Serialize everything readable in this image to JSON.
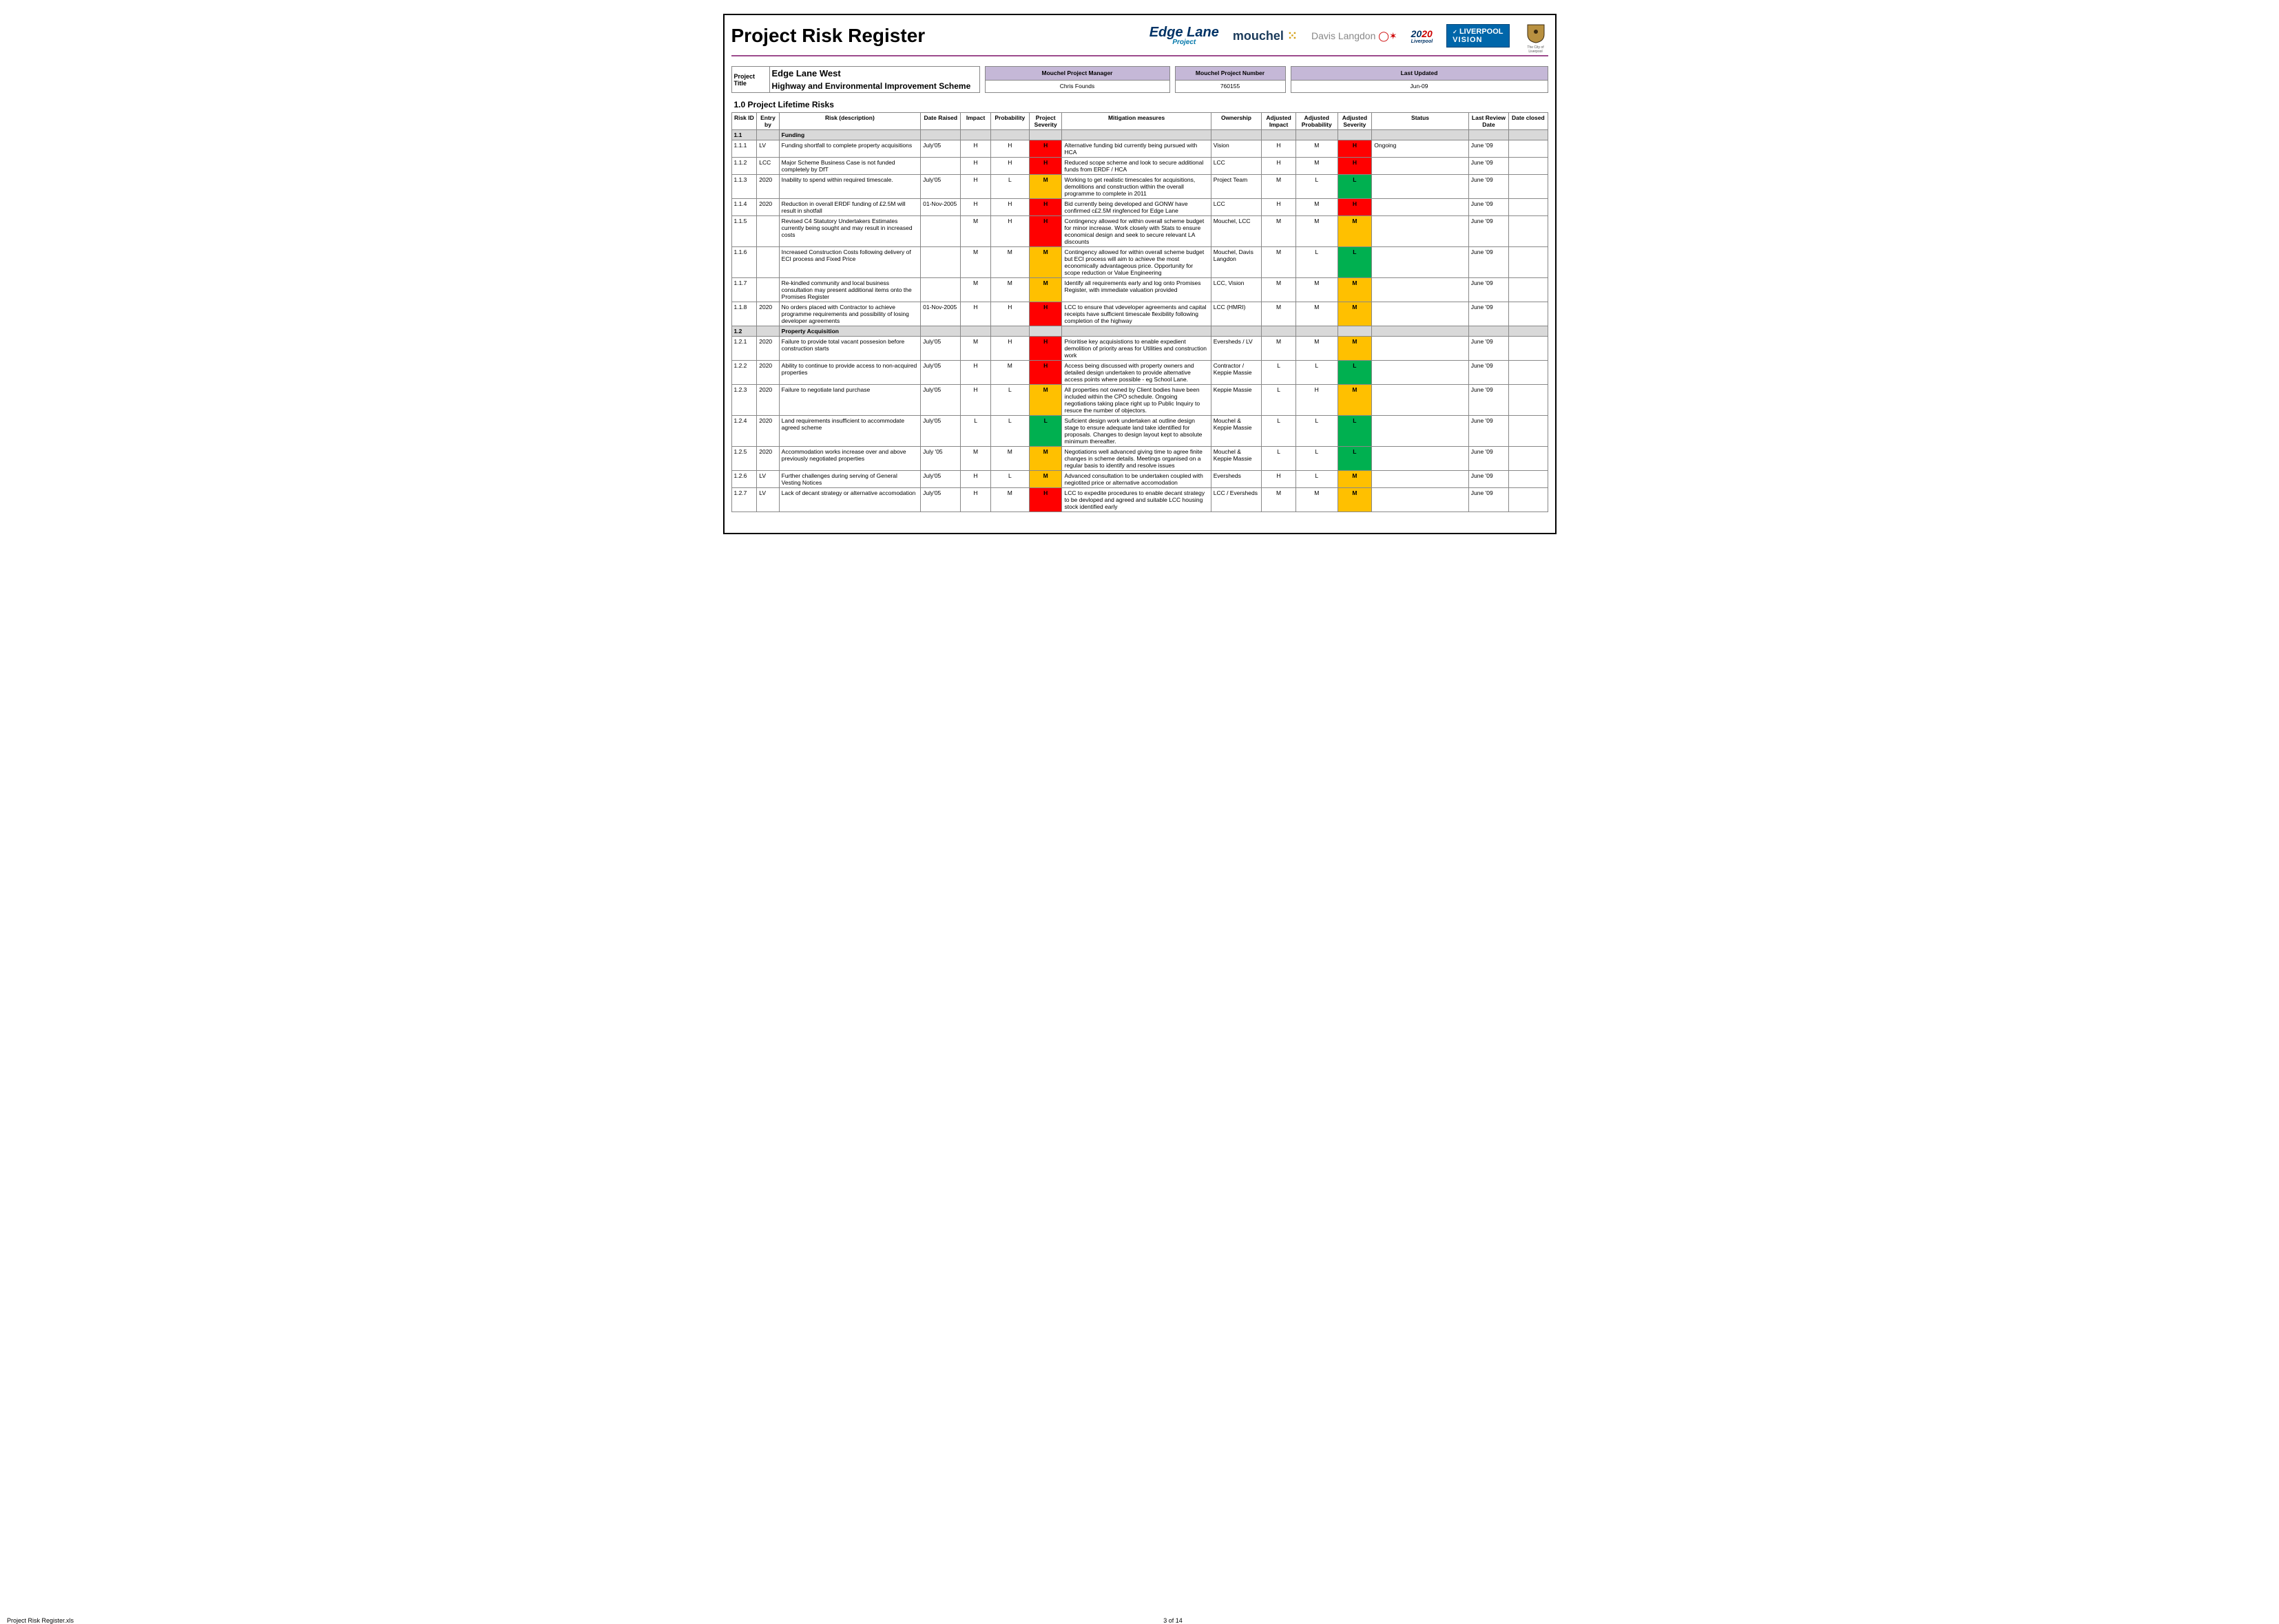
{
  "title": "Project Risk Register",
  "logos": {
    "edge": "Edge Lane",
    "edge_sub": "Project",
    "mouchel": "mouchel",
    "davis": "Davis Langdon",
    "y2020": "20",
    "y2020b": "20",
    "y2020_sub": "Liverpool",
    "vision_top": "LIVERPOOL",
    "vision_bot": "VISION",
    "crest_sub": "The City of Liverpool"
  },
  "meta": {
    "project_title_label": "Project Title",
    "project_title": "Edge Lane West",
    "project_sub": "Highway and Environmental Improvement Scheme",
    "mgr_label": "Mouchel Project Manager",
    "mgr": "Chris Founds",
    "num_label": "Mouchel Project Number",
    "num": "760155",
    "upd_label": "Last Updated",
    "upd": "Jun-09"
  },
  "section": "1.0    Project Lifetime Risks",
  "columns": [
    "Risk ID",
    "Entry by",
    "Risk (description)",
    "Date Raised",
    "Impact",
    "Probability",
    "Project Severity",
    "Mitigation measures",
    "Ownership",
    "Adjusted Impact",
    "Adjusted Probability",
    "Adjusted Severity",
    "Status",
    "Last Review Date",
    "Date closed"
  ],
  "col_widths": [
    "34px",
    "30px",
    "190px",
    "54px",
    "40px",
    "52px",
    "44px",
    "200px",
    "68px",
    "46px",
    "56px",
    "46px",
    "130px",
    "54px",
    "52px"
  ],
  "sev_colors": {
    "H": "#ff0000",
    "M": "#ffc000",
    "L": "#00b050"
  },
  "rows": [
    {
      "type": "group",
      "id": "1.1",
      "desc": "Funding"
    },
    {
      "id": "1.1.1",
      "entry": "LV",
      "desc": "Funding shortfall to complete property acquisitions",
      "date": "July'05",
      "impact": "H",
      "prob": "H",
      "sev": "H",
      "mit": "Alternative funding bid currently being pursued with HCA",
      "own": "Vision",
      "aimp": "H",
      "aprob": "M",
      "asev": "H",
      "status": "Ongoing",
      "review": "June '09",
      "closed": ""
    },
    {
      "id": "1.1.2",
      "entry": "LCC",
      "desc": "Major Scheme Business Case is not funded completely by DfT",
      "date": "",
      "impact": "H",
      "prob": "H",
      "sev": "H",
      "mit": "Reduced scope scheme and look to secure additional funds from ERDF / HCA",
      "own": "LCC",
      "aimp": "H",
      "aprob": "M",
      "asev": "H",
      "status": "",
      "review": "June '09",
      "closed": ""
    },
    {
      "id": "1.1.3",
      "entry": "2020",
      "desc": "Inability to spend within required timescale.",
      "date": "July'05",
      "impact": "H",
      "prob": "L",
      "sev": "M",
      "mit": "Working to get realistic timescales for acquisitions, demolitions and construction within the overall programme to complete in 2011",
      "own": "Project Team",
      "aimp": "M",
      "aprob": "L",
      "asev": "L",
      "status": "",
      "review": "June '09",
      "closed": ""
    },
    {
      "id": "1.1.4",
      "entry": "2020",
      "desc": "Reduction in overall ERDF funding of £2.5M will result in shotfall",
      "date": "01-Nov-2005",
      "impact": "H",
      "prob": "H",
      "sev": "H",
      "mit": "Bid currently being developed and GONW have confirmed c£2.5M ringfenced for Edge Lane",
      "own": "LCC",
      "aimp": "H",
      "aprob": "M",
      "asev": "H",
      "status": "",
      "review": "June '09",
      "closed": ""
    },
    {
      "id": "1.1.5",
      "entry": "",
      "desc": "Revised C4 Statutory Undertakers Estimates currently being sought and may result in increased costs",
      "date": "",
      "impact": "M",
      "prob": "H",
      "sev": "H",
      "mit": "Contingency allowed for within overall scheme budget for minor increase.  Work closely with Stats to ensure economical design and seek to secure relevant LA discounts",
      "own": "Mouchel, LCC",
      "aimp": "M",
      "aprob": "M",
      "asev": "M",
      "status": "",
      "review": "June '09",
      "closed": ""
    },
    {
      "id": "1.1.6",
      "entry": "",
      "desc": "Increased Construction Costs following delivery of ECI process and Fixed Price",
      "date": "",
      "impact": "M",
      "prob": "M",
      "sev": "M",
      "mit": "Contingency allowed for within overall scheme budget but ECI process will aim to achieve the most economically advantageous price. Opportunity for scope reduction or Value Engineering",
      "own": "Mouchel, Davis Langdon",
      "aimp": "M",
      "aprob": "L",
      "asev": "L",
      "status": "",
      "review": "June '09",
      "closed": ""
    },
    {
      "id": "1.1.7",
      "entry": "",
      "desc": "Re-kindled community and local business consultation may present additional items onto the Promises Register",
      "date": "",
      "impact": "M",
      "prob": "M",
      "sev": "M",
      "mit": "Identify all requirements early and log onto Promises Register, with immediate valuation provided",
      "own": "LCC, Vision",
      "aimp": "M",
      "aprob": "M",
      "asev": "M",
      "status": "",
      "review": "June '09",
      "closed": ""
    },
    {
      "id": "1.1.8",
      "entry": "2020",
      "desc": "No orders placed with Contractor to achieve programme requirements and possibility of losing developer agreements",
      "date": "01-Nov-2005",
      "impact": "H",
      "prob": "H",
      "sev": "H",
      "mit": "LCC to ensure that vdeveloper agreements and capital receipts have sufficient timescale flexibility following completion of the highway",
      "own": "LCC (HMRI)",
      "aimp": "M",
      "aprob": "M",
      "asev": "M",
      "status": "",
      "review": "June '09",
      "closed": ""
    },
    {
      "type": "group",
      "id": "1.2",
      "desc": "Property Acquisition"
    },
    {
      "id": "1.2.1",
      "entry": "2020",
      "desc": "Failure to provide total vacant possesion before construction starts",
      "date": "July'05",
      "impact": "M",
      "prob": "H",
      "sev": "H",
      "mit": "Prioritise key acquisistions to enable expedient demolition of priority areas for Utilities and construction work",
      "own": "Eversheds / LV",
      "aimp": "M",
      "aprob": "M",
      "asev": "M",
      "status": "",
      "review": "June '09",
      "closed": ""
    },
    {
      "id": "1.2.2",
      "entry": "2020",
      "desc": "Ability to continue to provide access to non-acquired properties",
      "date": "July'05",
      "impact": "H",
      "prob": "M",
      "sev": "H",
      "mit": "Access being discussed with property owners and detailed design undertaken to provide alternative access points where possible - eg School Lane.",
      "own": "Contractor / Keppie Massie",
      "aimp": "L",
      "aprob": "L",
      "asev": "L",
      "status": "",
      "review": "June '09",
      "closed": ""
    },
    {
      "id": "1.2.3",
      "entry": "2020",
      "desc": "Failure to negotiate land purchase",
      "date": "July'05",
      "impact": "H",
      "prob": "L",
      "sev": "M",
      "mit": "All properties not owned by Client bodies have been included within the CPO schedule.  Ongoing negotiations taking place right up to Public Inquiry to resuce the number of objectors.",
      "own": "Keppie Massie",
      "aimp": "L",
      "aprob": "H",
      "asev": "M",
      "status": "",
      "review": "June '09",
      "closed": ""
    },
    {
      "id": "1.2.4",
      "entry": "2020",
      "desc": "Land requirements insufficient to accommodate agreed scheme",
      "date": "July'05",
      "impact": "L",
      "prob": "L",
      "sev": "L",
      "mit": "Suficient design work undertaken at outline design stage to ensure adequate land take identified for proposals.  Changes to design layout kept to absolute minimum thereafter.",
      "own": "Mouchel & Keppie Massie",
      "aimp": "L",
      "aprob": "L",
      "asev": "L",
      "status": "",
      "review": "June '09",
      "closed": ""
    },
    {
      "id": "1.2.5",
      "entry": "2020",
      "desc": "Accommodation works increase over and above previously negotiated properties",
      "date": "July '05",
      "impact": "M",
      "prob": "M",
      "sev": "M",
      "mit": "Negotiations well advanced giving time to agree finite changes in scheme details. Meetings organised on a regular basis to identify and resolve issues",
      "own": "Mouchel & Keppie Massie",
      "aimp": "L",
      "aprob": "L",
      "asev": "L",
      "status": "",
      "review": "June '09",
      "closed": ""
    },
    {
      "id": "1.2.6",
      "entry": "LV",
      "desc": "Further challenges during serving of General Vesting Notices",
      "date": "July'05",
      "impact": "H",
      "prob": "L",
      "sev": "M",
      "mit": "Advanced consultation to be undertaken coupled with negiotited price or alternative accomodation",
      "own": "Eversheds",
      "aimp": "H",
      "aprob": "L",
      "asev": "M",
      "status": "",
      "review": "June '09",
      "closed": ""
    },
    {
      "id": "1.2.7",
      "entry": "LV",
      "desc": "Lack of decant strategy or alternative accomodation",
      "date": "July'05",
      "impact": "H",
      "prob": "M",
      "sev": "H",
      "mit": "LCC to expedite procedures to enable decant strategy to be devloped and agreed and suitable LCC housing stock identified early",
      "own": "LCC / Eversheds",
      "aimp": "M",
      "aprob": "M",
      "asev": "M",
      "status": "",
      "review": "June '09",
      "closed": ""
    }
  ],
  "footer_left": "Project Risk Register.xls",
  "footer_center": "3 of 14"
}
